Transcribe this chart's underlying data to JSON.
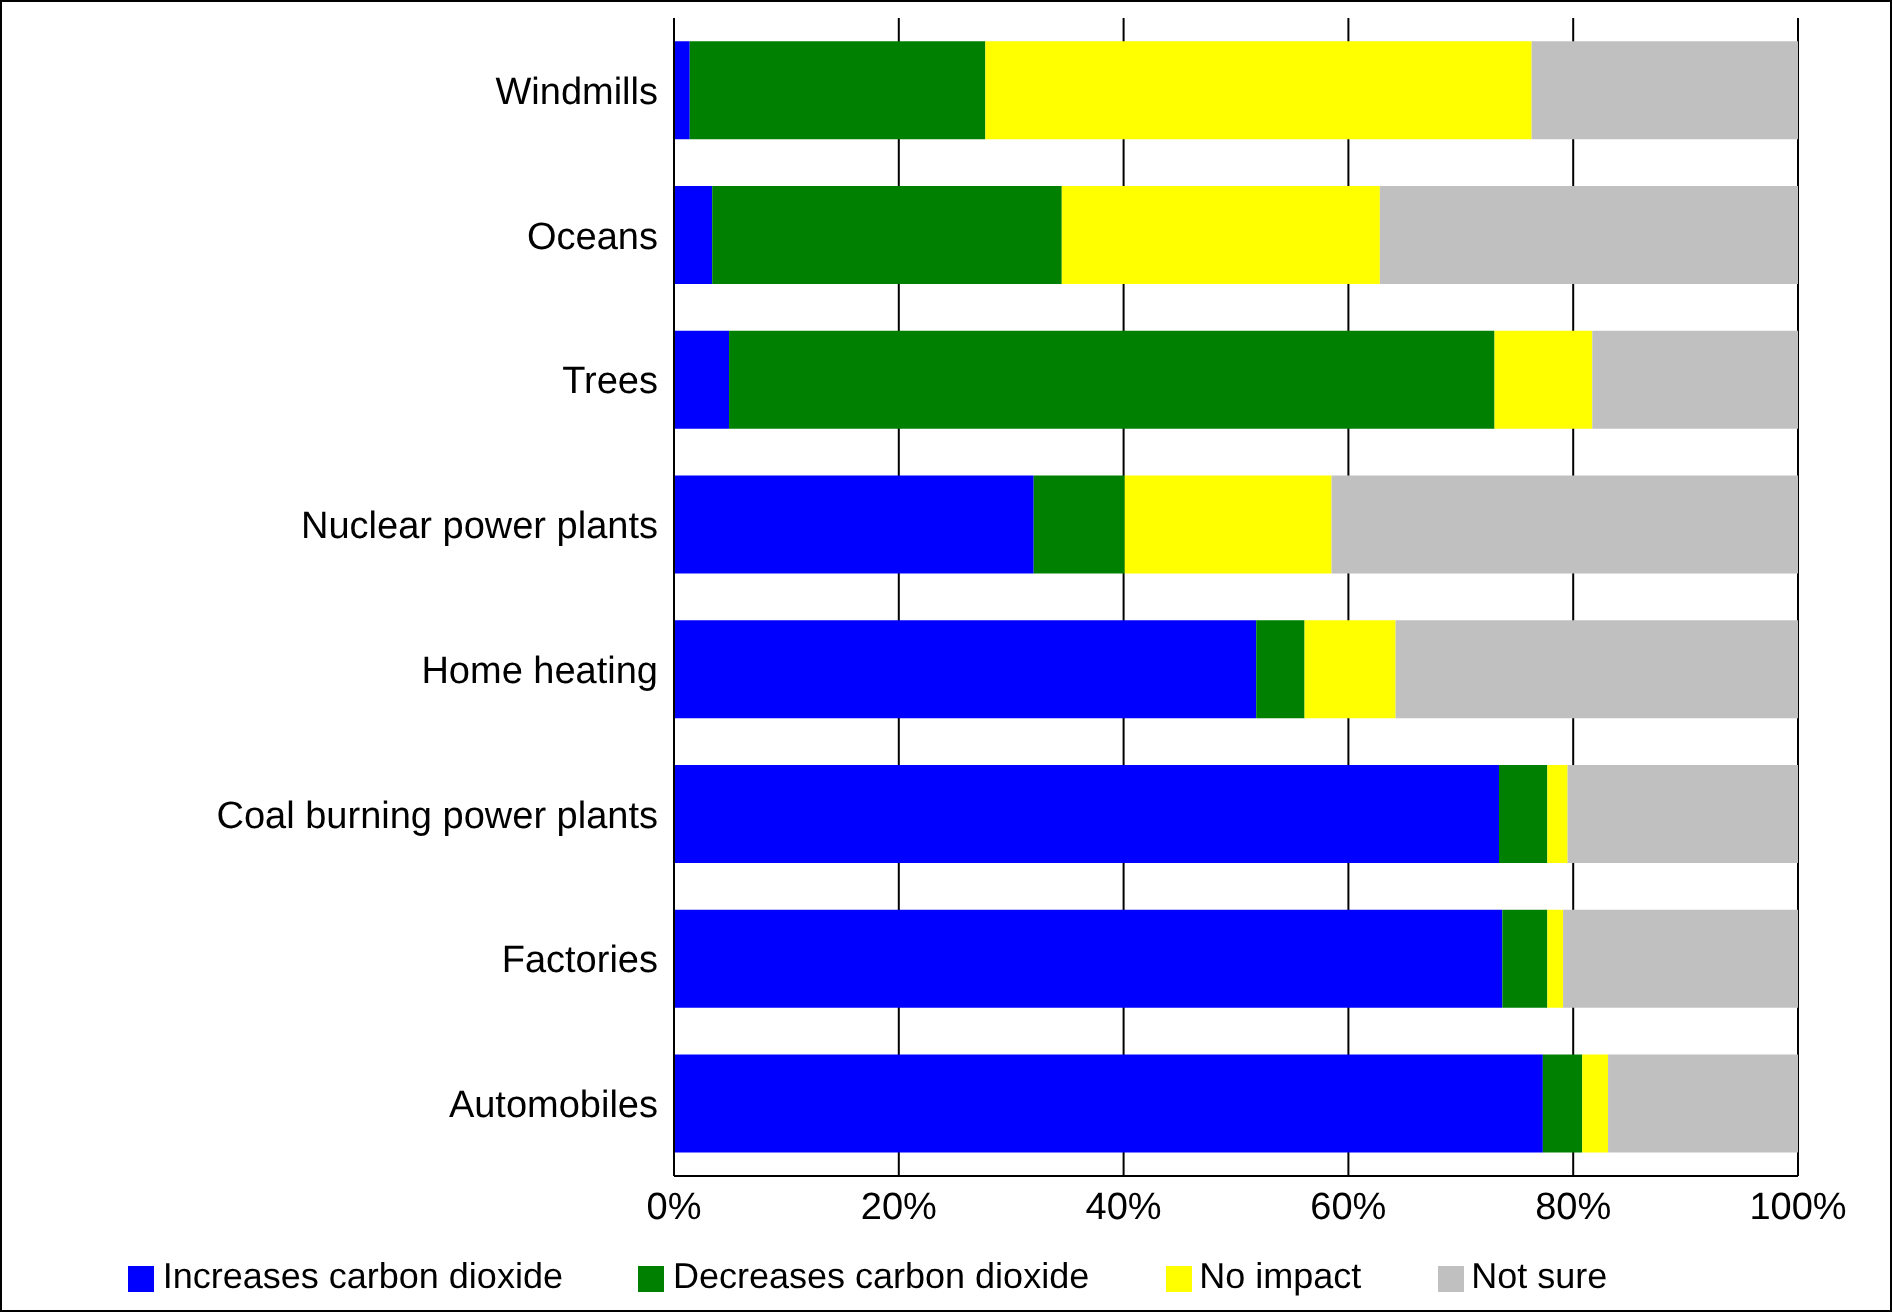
{
  "chart_data": {
    "type": "bar",
    "orientation": "horizontal",
    "stacked": true,
    "categories": [
      "Windmills",
      "Oceans",
      "Trees",
      "Nuclear power plants",
      "Home heating",
      "Coal burning power plants",
      "Factories",
      "Automobiles"
    ],
    "series": [
      {
        "name": "Increases carbon dioxide",
        "color": "#0000ff",
        "values": [
          1.4,
          3.4,
          4.9,
          32.0,
          51.8,
          73.4,
          73.7,
          77.3
        ]
      },
      {
        "name": "Decreases carbon dioxide",
        "color": "#008000",
        "values": [
          26.3,
          31.1,
          68.1,
          8.1,
          4.3,
          4.3,
          4.0,
          3.5
        ]
      },
      {
        "name": "No impact",
        "color": "#ffff00",
        "values": [
          48.6,
          28.3,
          8.7,
          18.4,
          8.1,
          1.8,
          1.4,
          2.3
        ]
      },
      {
        "name": "Not sure",
        "color": "#c0c0c0",
        "values": [
          23.7,
          37.2,
          18.3,
          41.5,
          35.8,
          20.5,
          20.9,
          16.9
        ]
      }
    ],
    "xlim": [
      0,
      100
    ],
    "xticks": [
      {
        "value": 0,
        "label": "0%"
      },
      {
        "value": 20,
        "label": "20%"
      },
      {
        "value": 40,
        "label": "40%"
      },
      {
        "value": 60,
        "label": "60%"
      },
      {
        "value": 80,
        "label": "80%"
      },
      {
        "value": 100,
        "label": "100%"
      }
    ],
    "grid": "x",
    "legend": "bottom"
  }
}
